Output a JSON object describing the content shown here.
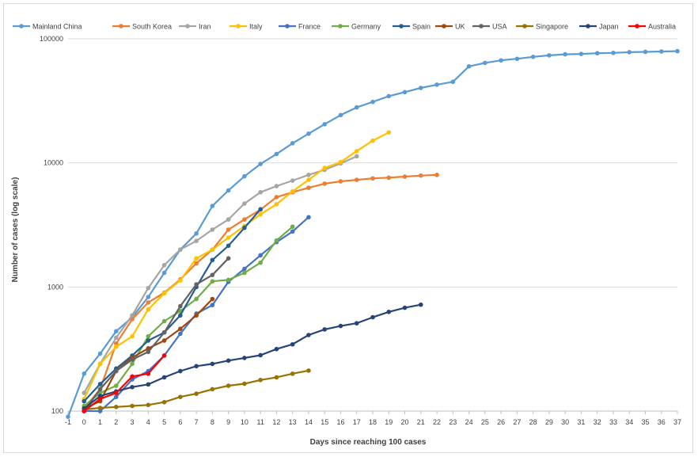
{
  "chart_data": {
    "type": "line",
    "title": "",
    "xlabel": "Days since reaching 100 cases",
    "ylabel": "Number of cases (log scale)",
    "yscale": "log",
    "ylim": [
      100,
      100000
    ],
    "xlim": [
      -1,
      37
    ],
    "y_ticks": [
      "100",
      "1000",
      "10000",
      "100000"
    ],
    "x_ticks": [
      "-1",
      "0",
      "1",
      "2",
      "3",
      "4",
      "5",
      "6",
      "7",
      "8",
      "9",
      "10",
      "11",
      "12",
      "13",
      "14",
      "15",
      "16",
      "17",
      "18",
      "19",
      "20",
      "21",
      "22",
      "23",
      "24",
      "25",
      "26",
      "27",
      "28",
      "29",
      "30",
      "31",
      "32",
      "33",
      "34",
      "35",
      "36",
      "37"
    ],
    "grid": "horizontal",
    "legend_position": "top",
    "series": [
      {
        "name": "Mainland China",
        "color": "#5b9bd5",
        "x_start": -1,
        "values": [
          90,
          200,
          290,
          440,
          570,
          830,
          1300,
          2000,
          2700,
          4500,
          6000,
          7800,
          9800,
          11800,
          14400,
          17200,
          20500,
          24300,
          28000,
          31000,
          34500,
          37200,
          40200,
          42700,
          45000,
          60000,
          64000,
          67000,
          69000,
          71500,
          73500,
          75000,
          75500,
          76500,
          77000,
          78000,
          78500,
          79000,
          79500
        ]
      },
      {
        "name": "South Korea",
        "color": "#ed7d31",
        "x_start": 0,
        "values": [
          105,
          150,
          350,
          550,
          750,
          900,
          1150,
          1550,
          2000,
          2900,
          3500,
          4200,
          5300,
          5800,
          6300,
          6800,
          7100,
          7300,
          7500,
          7600,
          7750,
          7900,
          8000
        ]
      },
      {
        "name": "Iran",
        "color": "#a5a5a5",
        "x_start": 0,
        "values": [
          140,
          240,
          390,
          590,
          980,
          1500,
          2000,
          2350,
          2900,
          3500,
          4700,
          5800,
          6500,
          7200,
          8000,
          8800,
          9900,
          11300
        ]
      },
      {
        "name": "Italy",
        "color": "#ffc000",
        "x_start": 0,
        "values": [
          125,
          240,
          330,
          400,
          660,
          890,
          1130,
          1700,
          2000,
          2500,
          3100,
          3850,
          4650,
          5900,
          7300,
          9100,
          10150,
          12450,
          15100,
          17600
        ]
      },
      {
        "name": "France",
        "color": "#4472c4",
        "x_start": 0,
        "values": [
          100,
          100,
          130,
          180,
          210,
          280,
          420,
          610,
          715,
          1100,
          1400,
          1800,
          2300,
          2800,
          3650
        ]
      },
      {
        "name": "Germany",
        "color": "#70ad47",
        "x_start": 0,
        "values": [
          110,
          140,
          160,
          240,
          400,
          530,
          640,
          800,
          1110,
          1140,
          1300,
          1570,
          2370,
          3060
        ]
      },
      {
        "name": "Spain",
        "color": "#255e91",
        "x_start": 0,
        "values": [
          120,
          165,
          220,
          280,
          370,
          430,
          590,
          1000,
          1650,
          2150,
          3000,
          4230
        ]
      },
      {
        "name": "UK",
        "color": "#9e480e",
        "x_start": 0,
        "values": [
          105,
          120,
          210,
          270,
          320,
          370,
          460,
          590,
          800
        ]
      },
      {
        "name": "USA",
        "color": "#636363",
        "x_start": 0,
        "values": [
          100,
          150,
          210,
          260,
          300,
          430,
          700,
          1050,
          1250,
          1700
        ]
      },
      {
        "name": "Singapore",
        "color": "#997300",
        "x_start": 0,
        "values": [
          103,
          106,
          108,
          110,
          112,
          118,
          130,
          138,
          150,
          160,
          166,
          178,
          187,
          200,
          212
        ]
      },
      {
        "name": "Japan",
        "color": "#264478",
        "x_start": 0,
        "values": [
          105,
          132,
          144,
          156,
          164,
          187,
          210,
          230,
          240,
          255,
          268,
          282,
          316,
          345,
          410,
          455,
          485,
          510,
          570,
          630,
          680,
          720
        ]
      },
      {
        "name": "Australia",
        "color": "#ff0000",
        "x_start": 0,
        "values": [
          100,
          125,
          140,
          190,
          200,
          280
        ]
      }
    ]
  }
}
